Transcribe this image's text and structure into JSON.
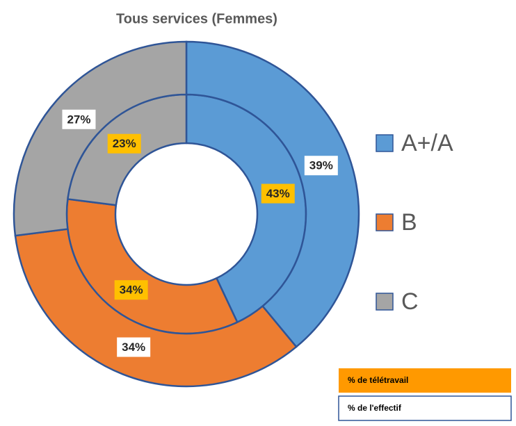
{
  "chart_data": {
    "type": "donut",
    "title": "Tous services (Femmes)",
    "categories": [
      "A+/A",
      "B",
      "C"
    ],
    "colors": [
      "#5b9bd5",
      "#ed7d31",
      "#a5a5a5"
    ],
    "legend": "right",
    "series": [
      {
        "name": "% de télétravail",
        "color": "#ff9900",
        "label_color": "#ffc000",
        "values": [
          43,
          34,
          23
        ],
        "value_labels": [
          "43%",
          "34%",
          "23%"
        ]
      },
      {
        "name": "% de l'effectif",
        "color": "#ffffff",
        "label_color": "#ffffff",
        "values": [
          39,
          34,
          27
        ],
        "value_labels": [
          "39%",
          "34%",
          "27%"
        ]
      }
    ]
  }
}
